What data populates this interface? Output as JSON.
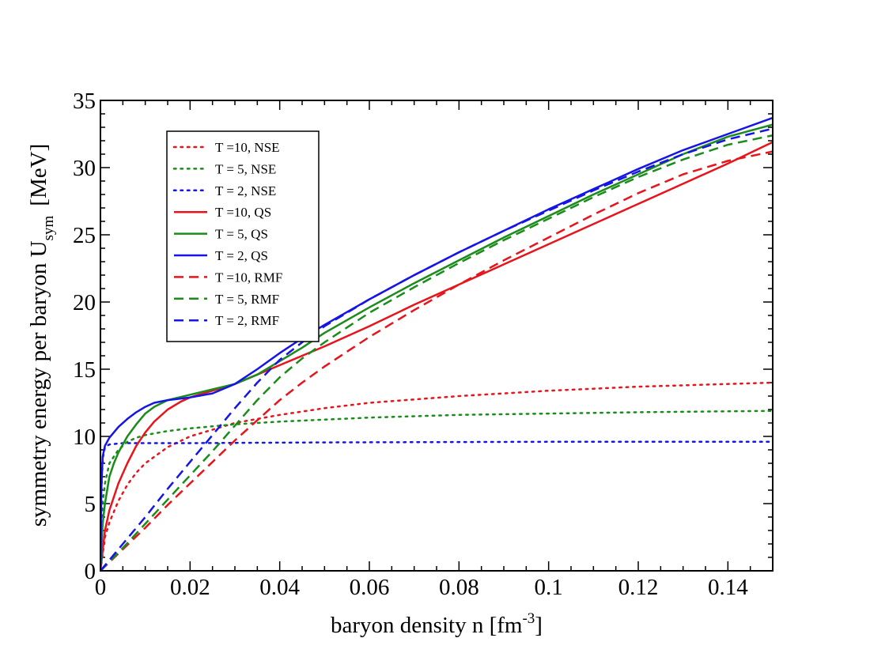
{
  "chart_data": {
    "type": "line",
    "xlabel": "baryon density n [fm",
    "xlabel_sup": "-3",
    "xlabel_end": "]",
    "ylabel": "symmetry energy per baryon U",
    "ylabel_sub": "sym",
    "ylabel_end": "[MeV]",
    "xlim": [
      0,
      0.15
    ],
    "ylim": [
      0,
      35
    ],
    "x_ticks": [
      0,
      0.02,
      0.04,
      0.06,
      0.08,
      0.1,
      0.12,
      0.14
    ],
    "x_tick_labels": [
      "0",
      "0.02",
      "0.04",
      "0.06",
      "0.08",
      "0.1",
      "0.12",
      "0.14"
    ],
    "y_ticks": [
      0,
      5,
      10,
      15,
      20,
      25,
      30,
      35
    ],
    "y_tick_labels": [
      "0",
      "5",
      "10",
      "15",
      "20",
      "25",
      "30",
      "35"
    ],
    "grid": false,
    "legend_position": "top-left",
    "series": [
      {
        "name": "T =10, NSE",
        "color": "#e8141c",
        "style": "dotted",
        "x": [
          0,
          0.001,
          0.002,
          0.004,
          0.006,
          0.008,
          0.01,
          0.015,
          0.02,
          0.03,
          0.04,
          0.05,
          0.06,
          0.08,
          0.1,
          0.12,
          0.15
        ],
        "y": [
          0,
          2.5,
          3.6,
          5.2,
          6.4,
          7.3,
          8.0,
          9.2,
          10.0,
          11.0,
          11.6,
          12.1,
          12.5,
          13.0,
          13.4,
          13.7,
          14.0
        ]
      },
      {
        "name": "T = 5, NSE",
        "color": "#1a8c1a",
        "style": "dotted",
        "x": [
          0,
          0.0005,
          0.001,
          0.002,
          0.004,
          0.006,
          0.008,
          0.01,
          0.015,
          0.02,
          0.03,
          0.04,
          0.06,
          0.08,
          0.1,
          0.12,
          0.15
        ],
        "y": [
          0,
          5.0,
          6.5,
          8.0,
          9.0,
          9.6,
          9.9,
          10.1,
          10.4,
          10.6,
          10.9,
          11.1,
          11.4,
          11.6,
          11.7,
          11.8,
          11.9
        ]
      },
      {
        "name": "T = 2, NSE",
        "color": "#1515e6",
        "style": "dotted",
        "x": [
          0,
          0.0003,
          0.0006,
          0.001,
          0.002,
          0.005,
          0.01,
          0.02,
          0.05,
          0.1,
          0.15
        ],
        "y": [
          0,
          7.0,
          8.5,
          9.2,
          9.4,
          9.5,
          9.5,
          9.5,
          9.55,
          9.6,
          9.6
        ]
      },
      {
        "name": "T =10, QS",
        "color": "#e8141c",
        "style": "solid",
        "x": [
          0,
          0.001,
          0.002,
          0.004,
          0.006,
          0.008,
          0.01,
          0.012,
          0.015,
          0.018,
          0.02,
          0.025,
          0.03,
          0.035,
          0.04,
          0.045,
          0.05,
          0.06,
          0.07,
          0.08,
          0.09,
          0.1,
          0.11,
          0.12,
          0.13,
          0.14,
          0.15
        ],
        "y": [
          0,
          3.0,
          4.5,
          6.5,
          8.0,
          9.3,
          10.3,
          11.1,
          12.0,
          12.6,
          12.9,
          13.4,
          13.9,
          14.6,
          15.3,
          16.0,
          16.7,
          18.2,
          19.8,
          21.3,
          22.8,
          24.3,
          25.8,
          27.3,
          28.8,
          30.3,
          31.9
        ]
      },
      {
        "name": "T = 5, QS",
        "color": "#1a8c1a",
        "style": "solid",
        "x": [
          0,
          0.0005,
          0.001,
          0.002,
          0.003,
          0.004,
          0.006,
          0.008,
          0.01,
          0.012,
          0.015,
          0.02,
          0.025,
          0.03,
          0.035,
          0.04,
          0.045,
          0.05,
          0.06,
          0.07,
          0.08,
          0.09,
          0.1,
          0.11,
          0.12,
          0.13,
          0.14,
          0.15
        ],
        "y": [
          0,
          3.5,
          5.0,
          7.0,
          8.0,
          8.8,
          10.0,
          10.9,
          11.7,
          12.2,
          12.7,
          13.1,
          13.5,
          13.9,
          14.6,
          15.6,
          16.6,
          17.7,
          19.6,
          21.4,
          23.1,
          24.8,
          26.4,
          28.0,
          29.5,
          31.0,
          32.3,
          33.2
        ]
      },
      {
        "name": "T = 2, QS",
        "color": "#1515e6",
        "style": "solid",
        "x": [
          0,
          0.0002,
          0.0005,
          0.001,
          0.002,
          0.004,
          0.006,
          0.008,
          0.01,
          0.012,
          0.015,
          0.02,
          0.025,
          0.03,
          0.035,
          0.04,
          0.045,
          0.05,
          0.06,
          0.07,
          0.08,
          0.09,
          0.1,
          0.11,
          0.12,
          0.13,
          0.14,
          0.15
        ],
        "y": [
          0,
          6.0,
          8.5,
          9.3,
          9.9,
          10.7,
          11.3,
          11.8,
          12.2,
          12.5,
          12.7,
          12.9,
          13.2,
          13.9,
          15.0,
          16.2,
          17.3,
          18.3,
          20.2,
          22.0,
          23.7,
          25.3,
          26.9,
          28.4,
          29.9,
          31.3,
          32.5,
          33.7
        ]
      },
      {
        "name": "T =10, RMF",
        "color": "#e8141c",
        "style": "dashed",
        "x": [
          0,
          0.005,
          0.01,
          0.015,
          0.02,
          0.025,
          0.03,
          0.035,
          0.04,
          0.045,
          0.05,
          0.06,
          0.07,
          0.08,
          0.09,
          0.1,
          0.11,
          0.12,
          0.13,
          0.14,
          0.15
        ],
        "y": [
          0,
          1.6,
          3.2,
          4.9,
          6.5,
          8.1,
          9.7,
          11.2,
          12.7,
          14.0,
          15.2,
          17.4,
          19.4,
          21.3,
          23.1,
          24.8,
          26.5,
          28.1,
          29.5,
          30.5,
          31.2
        ]
      },
      {
        "name": "T = 5, RMF",
        "color": "#1a8c1a",
        "style": "dashed",
        "x": [
          0,
          0.005,
          0.01,
          0.015,
          0.02,
          0.025,
          0.03,
          0.035,
          0.04,
          0.045,
          0.05,
          0.06,
          0.07,
          0.08,
          0.09,
          0.1,
          0.11,
          0.12,
          0.13,
          0.14,
          0.15
        ],
        "y": [
          0,
          1.7,
          3.5,
          5.3,
          7.1,
          8.9,
          10.8,
          12.7,
          14.4,
          15.8,
          17.0,
          19.2,
          21.1,
          22.9,
          24.6,
          26.2,
          27.8,
          29.3,
          30.6,
          31.7,
          32.4
        ]
      },
      {
        "name": "T = 2, RMF",
        "color": "#1515e6",
        "style": "dashed",
        "x": [
          0,
          0.005,
          0.01,
          0.015,
          0.02,
          0.025,
          0.03,
          0.035,
          0.04,
          0.045,
          0.05,
          0.06,
          0.07,
          0.08,
          0.09,
          0.1,
          0.11,
          0.12,
          0.13,
          0.14,
          0.15
        ],
        "y": [
          0,
          2.0,
          4.0,
          6.1,
          8.1,
          10.1,
          12.1,
          14.0,
          15.7,
          17.0,
          18.2,
          20.2,
          22.0,
          23.7,
          25.3,
          26.8,
          28.3,
          29.7,
          31.0,
          32.1,
          32.9
        ]
      }
    ]
  }
}
